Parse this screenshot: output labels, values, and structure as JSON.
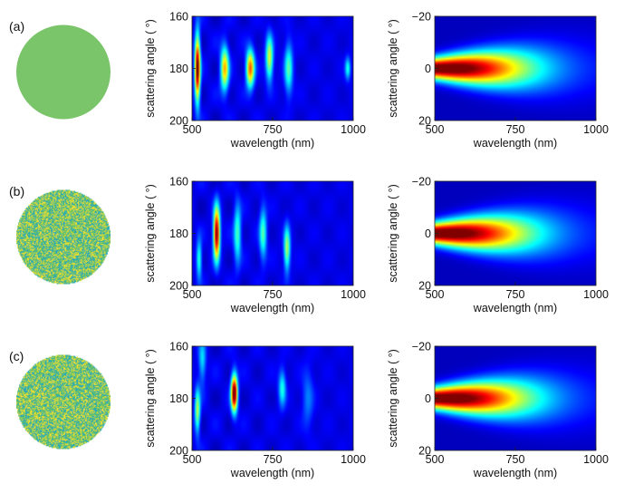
{
  "chart_data": {
    "type": "heatmap",
    "rows": [
      {
        "label": "(a)",
        "particle": {
          "type": "uniform",
          "color": "#7ac46a"
        },
        "left": {
          "xlabel": "wavelength (nm)",
          "ylabel": "scattering angle ( °)",
          "xlim": [
            500,
            1000
          ],
          "ylim": [
            160,
            200
          ],
          "xticks": [
            "500",
            "750",
            "1000"
          ],
          "yticks": [
            "160",
            "180",
            "200"
          ],
          "hotspots": [
            {
              "x": 515,
              "y": 180,
              "amp": 0.95,
              "sx": 6,
              "sy": 9
            },
            {
              "x": 600,
              "y": 180,
              "amp": 0.6,
              "sx": 9,
              "sy": 6
            },
            {
              "x": 680,
              "y": 180,
              "amp": 0.7,
              "sx": 9,
              "sy": 5
            },
            {
              "x": 740,
              "y": 176,
              "amp": 0.5,
              "sx": 8,
              "sy": 6
            },
            {
              "x": 800,
              "y": 180,
              "amp": 0.35,
              "sx": 9,
              "sy": 7
            },
            {
              "x": 985,
              "y": 180,
              "amp": 0.3,
              "sx": 6,
              "sy": 3
            }
          ]
        },
        "right": {
          "xlabel": "wavelength (nm)",
          "ylabel": "scattering angle ( °)",
          "xlim": [
            500,
            1000
          ],
          "ylim": [
            -20,
            20
          ],
          "xticks": [
            "500",
            "750",
            "1000"
          ],
          "yticks": [
            "-20",
            "0",
            "20"
          ]
        }
      },
      {
        "label": "(b)",
        "particle": {
          "type": "random",
          "seed": 7
        },
        "left": {
          "xlabel": "wavelength (nm)",
          "ylabel": "scattering angle ( °)",
          "xlim": [
            500,
            1000
          ],
          "ylim": [
            160,
            200
          ],
          "xticks": [
            "500",
            "750",
            "1000"
          ],
          "yticks": [
            "160",
            "180",
            "200"
          ],
          "hotspots": [
            {
              "x": 575,
              "y": 180,
              "amp": 0.95,
              "sx": 7,
              "sy": 7
            },
            {
              "x": 520,
              "y": 190,
              "amp": 0.35,
              "sx": 6,
              "sy": 5
            },
            {
              "x": 640,
              "y": 180,
              "amp": 0.35,
              "sx": 8,
              "sy": 8
            },
            {
              "x": 720,
              "y": 180,
              "amp": 0.35,
              "sx": 8,
              "sy": 7
            },
            {
              "x": 795,
              "y": 186,
              "amp": 0.45,
              "sx": 7,
              "sy": 6
            }
          ]
        },
        "right": {
          "xlabel": "wavelength (nm)",
          "ylabel": "scattering angle ( °)",
          "xlim": [
            500,
            1000
          ],
          "ylim": [
            -20,
            20
          ],
          "xticks": [
            "500",
            "750",
            "1000"
          ],
          "yticks": [
            "-20",
            "0",
            "20"
          ]
        }
      },
      {
        "label": "(c)",
        "particle": {
          "type": "random",
          "seed": 19
        },
        "left": {
          "xlabel": "wavelength (nm)",
          "ylabel": "scattering angle ( °)",
          "xlim": [
            500,
            1000
          ],
          "ylim": [
            160,
            200
          ],
          "xticks": [
            "500",
            "750",
            "1000"
          ],
          "yticks": [
            "160",
            "180",
            "200"
          ],
          "hotspots": [
            {
              "x": 630,
              "y": 178,
              "amp": 1.0,
              "sx": 7,
              "sy": 5
            },
            {
              "x": 515,
              "y": 185,
              "amp": 0.45,
              "sx": 6,
              "sy": 6
            },
            {
              "x": 530,
              "y": 166,
              "amp": 0.25,
              "sx": 8,
              "sy": 6
            },
            {
              "x": 780,
              "y": 176,
              "amp": 0.3,
              "sx": 8,
              "sy": 5
            },
            {
              "x": 860,
              "y": 180,
              "amp": 0.15,
              "sx": 12,
              "sy": 8
            }
          ]
        },
        "right": {
          "xlabel": "wavelength (nm)",
          "ylabel": "scattering angle ( °)",
          "xlim": [
            500,
            1000
          ],
          "ylim": [
            -20,
            20
          ],
          "xticks": [
            "500",
            "750",
            "1000"
          ],
          "yticks": [
            "-20",
            "0",
            "20"
          ]
        }
      }
    ]
  }
}
